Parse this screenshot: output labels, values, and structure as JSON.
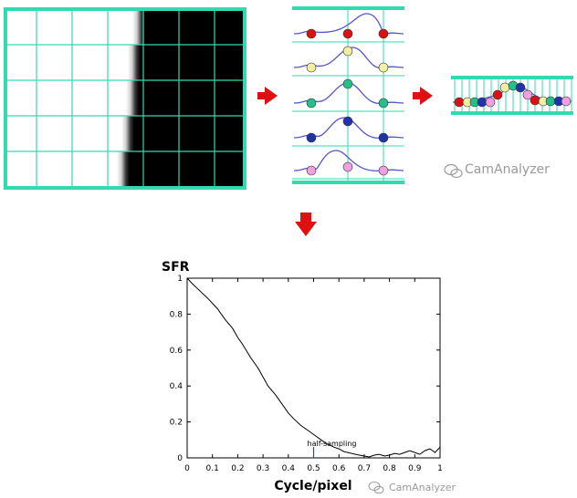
{
  "watermark": {
    "text": "CamAnalyzer",
    "icon": "wechat-icon",
    "color": "#9a9a9a"
  },
  "colors": {
    "grid_line": "#33d9b0",
    "arrow": "#dd1111",
    "wave": "#5555cc",
    "dot_red": "#dd1111",
    "dot_yellow": "#f2f0a0",
    "dot_green": "#22c08a",
    "dot_blue": "#2233aa",
    "dot_pink": "#f0a0e0",
    "sfr_curve": "#000000",
    "marker": "#1f4e9c"
  },
  "chart_data": {
    "type": "line",
    "title": "",
    "xlabel": "Cycle/pixel",
    "ylabel": "SFR",
    "xlim": [
      0,
      1
    ],
    "ylim": [
      0,
      1
    ],
    "x_ticks": [
      "0",
      "0.1",
      "0.2",
      "0.3",
      "0.4",
      "0.5",
      "0.6",
      "0.7",
      "0.8",
      "0.9",
      "1"
    ],
    "y_ticks": [
      "0",
      "0.2",
      "0.4",
      "0.6",
      "0.8",
      "1"
    ],
    "grid": false,
    "annotation": {
      "text": "half-sampling",
      "x": 0.5
    },
    "series": [
      {
        "x": [
          0,
          0.02,
          0.05,
          0.08,
          0.1,
          0.12,
          0.15,
          0.18,
          0.2,
          0.22,
          0.25,
          0.28,
          0.3,
          0.32,
          0.35,
          0.38,
          0.4,
          0.42,
          0.45,
          0.48,
          0.5,
          0.52,
          0.55,
          0.58,
          0.6,
          0.62,
          0.65,
          0.68,
          0.7,
          0.72,
          0.74,
          0.76,
          0.78,
          0.8,
          0.82,
          0.84,
          0.86,
          0.88,
          0.9,
          0.92,
          0.94,
          0.96,
          0.98,
          1.0
        ],
        "y": [
          1.0,
          0.97,
          0.93,
          0.89,
          0.86,
          0.83,
          0.77,
          0.72,
          0.67,
          0.63,
          0.56,
          0.5,
          0.45,
          0.4,
          0.35,
          0.29,
          0.25,
          0.22,
          0.18,
          0.15,
          0.13,
          0.11,
          0.08,
          0.06,
          0.05,
          0.035,
          0.025,
          0.015,
          0.01,
          0.005,
          0.015,
          0.02,
          0.01,
          0.015,
          0.025,
          0.02,
          0.03,
          0.04,
          0.03,
          0.02,
          0.04,
          0.05,
          0.03,
          0.06
        ]
      }
    ]
  }
}
